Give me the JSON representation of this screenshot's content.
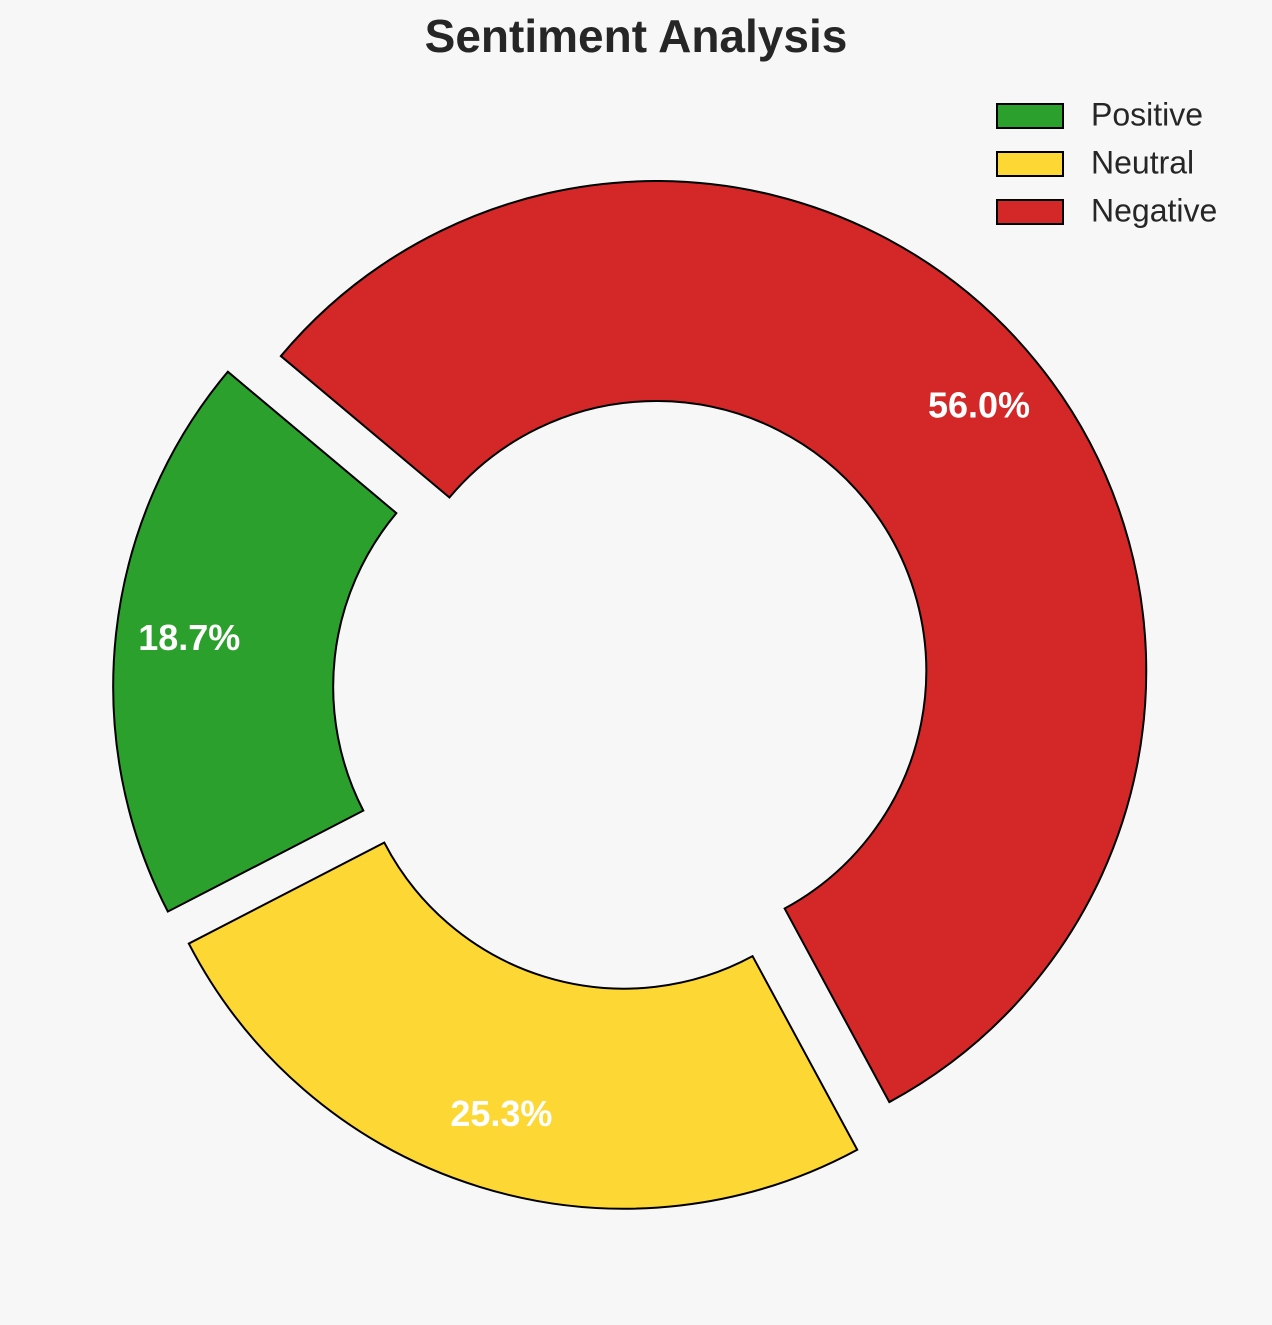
{
  "chart_data": {
    "type": "donut",
    "title": "Sentiment Analysis",
    "categories": [
      "Positive",
      "Neutral",
      "Negative"
    ],
    "values": [
      18.7,
      25.3,
      56.0
    ],
    "value_labels": [
      "18.7%",
      "25.3%",
      "56.0%"
    ],
    "colors": [
      "#2ca02c",
      "#fdd835",
      "#d32728"
    ],
    "legend": "upper right"
  }
}
